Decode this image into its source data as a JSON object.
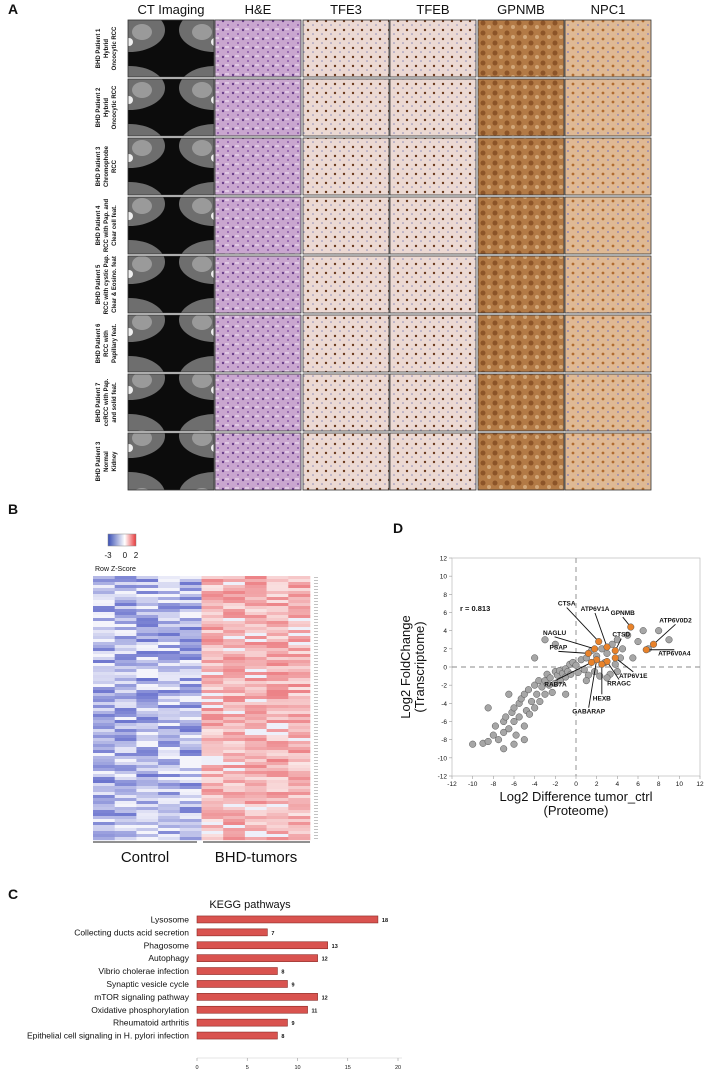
{
  "panel_a": {
    "label": "A",
    "columns": [
      "CT Imaging",
      "H&E",
      "TFE3",
      "TFEB",
      "GPNMB",
      "NPC1"
    ],
    "rows": [
      [
        "BHD Patient 1",
        "Hybrid",
        "Oncocytic RCC"
      ],
      [
        "BHD Patient 2",
        "Hybrid",
        "Oncocytic RCC"
      ],
      [
        "BHD Patient 3",
        "Chromophobe",
        "RCC"
      ],
      [
        "BHD Patient 4",
        "RCC with Pap. and",
        "Clear cell feat."
      ],
      [
        "BHD Patient 5",
        "RCC with cystic Pap.",
        "Clear & Eosino. feat"
      ],
      [
        "BHD Patient 6",
        "RCC with",
        "Papillary feat."
      ],
      [
        "BHD Patient 7",
        "ccRCC with Pap.",
        "and solid feat."
      ],
      [
        "BHD Patient 3",
        "Normal",
        "Kidney"
      ]
    ]
  },
  "panel_b": {
    "label": "B",
    "legend_title": "Row Z-Score",
    "legend_ticks": [
      -3,
      0,
      2
    ],
    "groups": [
      "Control",
      "BHD-tumors"
    ]
  },
  "chart_data": [
    {
      "type": "bar",
      "panel_label": "C",
      "title": "KEGG pathways",
      "orientation": "horizontal",
      "categories": [
        "Lysosome",
        "Collecting ducts acid secretion",
        "Phagosome",
        "Autophagy",
        "Vibrio cholerae infection",
        "Synaptic vesicle cycle",
        "mTOR signaling pathway",
        "Oxidative phosphorylation",
        "Rheumatoid arthritis",
        "Epithelial cell signaling in H. pylori infection"
      ],
      "values": [
        18,
        7,
        13,
        12,
        8,
        9,
        12,
        11,
        9,
        8
      ],
      "color": "#d9534f",
      "xlim": [
        0,
        20
      ],
      "xticks": [
        0,
        5,
        10,
        15,
        20
      ]
    },
    {
      "type": "scatter",
      "panel_label": "D",
      "x_label": [
        "Log2 Difference tumor_ctrl",
        "(Proteome)"
      ],
      "y_label": [
        "Log2 FoldChange",
        "(Transcriptome)"
      ],
      "annotation": "r = 0.813",
      "xlim": [
        -12,
        12
      ],
      "ylim": [
        -12,
        12
      ],
      "xticks": [
        -12,
        -10,
        -8,
        -6,
        -4,
        -2,
        0,
        2,
        4,
        6,
        8,
        10,
        12
      ],
      "yticks": [
        -12,
        -10,
        -8,
        -6,
        -4,
        -2,
        0,
        2,
        4,
        6,
        8,
        10,
        12
      ],
      "series": [
        {
          "color": "#a6a6a6",
          "x": [
            -10,
            -9,
            -8.5,
            -8,
            -7.8,
            -7.5,
            -7,
            -7,
            -6.8,
            -6.5,
            -6.2,
            -6,
            -6,
            -5.8,
            -5.5,
            -5.5,
            -5.3,
            -5,
            -5,
            -4.8,
            -4.6,
            -4.5,
            -4.3,
            -4,
            -4,
            -3.8,
            -3.6,
            -3.5,
            -3.3,
            -3,
            -3,
            -2.8,
            -2.6,
            -2.5,
            -2.3,
            -2,
            -2,
            -1.8,
            -1.6,
            -1.5,
            -1.3,
            -1,
            -1,
            -0.8,
            -0.6,
            -0.5,
            -0.3,
            0,
            0.2,
            0.5,
            0.8,
            1,
            1.2,
            1.5,
            1.8,
            2,
            2.3,
            2.5,
            2.8,
            3,
            3.3,
            3.5,
            3.8,
            4,
            4.3,
            4.5,
            5,
            5.5,
            6,
            6.5,
            7,
            8,
            9,
            -3,
            -2,
            -4,
            -7,
            -8.5,
            -6.5,
            -1,
            1,
            3,
            -6,
            -5,
            4
          ],
          "y": [
            -8.5,
            -8.4,
            -8.2,
            -7.5,
            -6.5,
            -8,
            -6,
            -7.2,
            -5.5,
            -6.8,
            -5,
            -4.5,
            -6,
            -7.5,
            -4,
            -5.5,
            -3.5,
            -3,
            -6.5,
            -4.8,
            -2.5,
            -5.2,
            -3.8,
            -2,
            -4.5,
            -3,
            -1.5,
            -3.8,
            -2.2,
            -1.5,
            -3,
            -0.8,
            -2,
            -1.2,
            -2.8,
            -0.5,
            -1.8,
            -0.9,
            -0.4,
            -1.5,
            -0.7,
            -0.2,
            -1.1,
            -0.5,
            0.3,
            -0.8,
            0.5,
            0.2,
            -0.6,
            0.8,
            -0.3,
            1,
            -0.9,
            1.8,
            -0.5,
            1.2,
            -1,
            2,
            0.5,
            1.5,
            -0.8,
            2.5,
            0.3,
            3,
            1,
            2,
            3.5,
            1,
            2.8,
            4,
            2,
            4,
            3,
            3,
            2.5,
            1,
            -9,
            -4.5,
            -3,
            -3,
            -1.5,
            -1.2,
            -8.5,
            -8,
            -0.5
          ]
        },
        {
          "color": "#e8822a",
          "labels": [
            "GPNMB",
            "ATP6V0D2",
            "ATP6V0A4",
            "ATP6V1E",
            "RRAGC",
            "HEXB",
            "GABARAP",
            "RAB7A",
            "PSAP",
            "NAGLU",
            "CTSA",
            "ATP6V1A",
            "CTSD"
          ],
          "x": [
            5.3,
            7.5,
            6.8,
            3.8,
            3.0,
            2.5,
            2.0,
            1.5,
            1.2,
            1.8,
            2.2,
            3.0,
            3.8
          ],
          "y": [
            4.4,
            2.5,
            1.9,
            1.0,
            0.6,
            0.3,
            0.8,
            0.5,
            1.5,
            2.0,
            2.8,
            2.2,
            1.8
          ]
        }
      ]
    }
  ]
}
